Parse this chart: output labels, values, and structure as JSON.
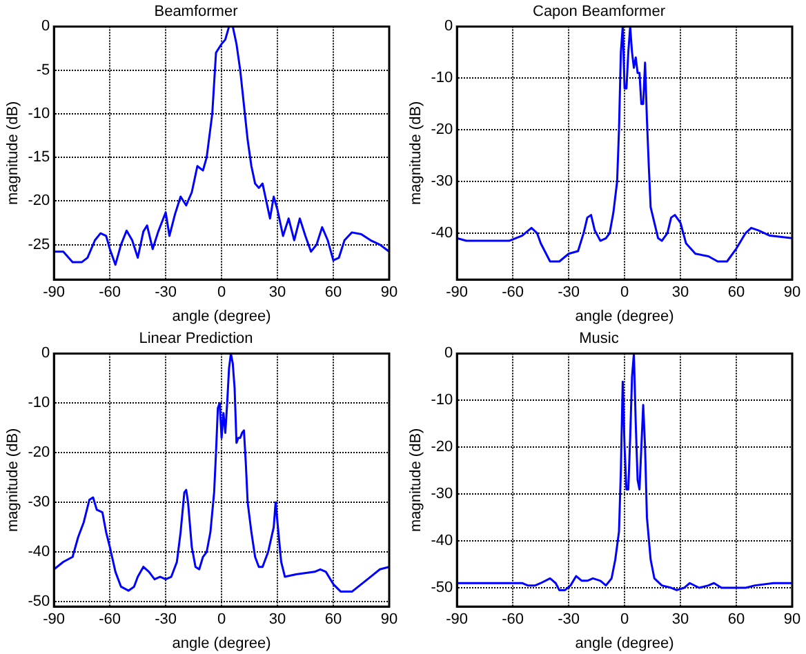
{
  "chart_data": [
    {
      "type": "line",
      "title": "Beamformer",
      "xlabel": "angle (degree)",
      "ylabel": "magnitude (dB)",
      "xlim": [
        -90,
        90
      ],
      "ylim": [
        -29,
        0
      ],
      "xticks": [
        -90,
        -60,
        -30,
        0,
        30,
        60,
        90
      ],
      "yticks": [
        -25,
        -20,
        -15,
        -10,
        -5,
        0
      ],
      "grid": true,
      "series": [
        {
          "color": "#0000ff",
          "x": [
            -90,
            -85,
            -80,
            -75,
            -72,
            -68,
            -65,
            -62,
            -60,
            -57,
            -54,
            -51,
            -48,
            -45,
            -42,
            -40,
            -37,
            -34,
            -30,
            -28,
            -25,
            -22,
            -19,
            -16,
            -13,
            -10,
            -8,
            -5,
            -3,
            0,
            2,
            4,
            6,
            8,
            10,
            12,
            14,
            16,
            18,
            20,
            22,
            24,
            26,
            28,
            30,
            33,
            36,
            39,
            42,
            45,
            48,
            51,
            54,
            57,
            60,
            63,
            66,
            70,
            75,
            80,
            85,
            90
          ],
          "values": [
            -25.8,
            -25.8,
            -27,
            -27,
            -26.5,
            -24.5,
            -23.7,
            -24,
            -25.5,
            -27.3,
            -25,
            -23.4,
            -24.5,
            -26.5,
            -23.5,
            -22.8,
            -25.5,
            -23.5,
            -21.3,
            -24,
            -21.5,
            -19.5,
            -20.5,
            -19,
            -16,
            -16.5,
            -15,
            -10,
            -3,
            -2,
            -1.5,
            0,
            0,
            -2,
            -5,
            -9,
            -13,
            -16,
            -18,
            -18.5,
            -18,
            -20,
            -22,
            -19.5,
            -21,
            -24,
            -22,
            -24.5,
            -22,
            -24,
            -25.8,
            -25,
            -23,
            -24.5,
            -26.8,
            -26.5,
            -24.5,
            -23.6,
            -23.8,
            -24.5,
            -25,
            -25.8
          ]
        }
      ]
    },
    {
      "type": "line",
      "title": "Capon Beamformer",
      "xlabel": "angle (degree)",
      "ylabel": "magnitude (dB)",
      "xlim": [
        -90,
        90
      ],
      "ylim": [
        -49,
        0
      ],
      "xticks": [
        -90,
        -60,
        -30,
        0,
        30,
        60,
        90
      ],
      "yticks": [
        -40,
        -30,
        -20,
        -10,
        0
      ],
      "grid": true,
      "series": [
        {
          "color": "#0000ff",
          "x": [
            -90,
            -85,
            -70,
            -62,
            -55,
            -50,
            -47,
            -45,
            -40,
            -35,
            -30,
            -25,
            -22,
            -20,
            -18,
            -16,
            -13,
            -10,
            -8,
            -6,
            -4,
            -3,
            -2,
            -1,
            0,
            1,
            2,
            3,
            4,
            5,
            6,
            7,
            8,
            9,
            10,
            11,
            12,
            13,
            14,
            16,
            18,
            20,
            23,
            25,
            27,
            30,
            33,
            38,
            45,
            50,
            55,
            60,
            65,
            68,
            72,
            78,
            90
          ],
          "values": [
            -41,
            -41.5,
            -41.5,
            -41.5,
            -40.5,
            -39,
            -40,
            -42,
            -45.5,
            -45.5,
            -44,
            -43.5,
            -40,
            -37,
            -36.5,
            -39.5,
            -41.5,
            -41,
            -40,
            -36,
            -30,
            -20,
            -5,
            0,
            -12,
            -12,
            -5,
            0,
            -5,
            -8,
            -6,
            -9,
            -9,
            -15,
            -15,
            -7,
            -18,
            -27,
            -35,
            -38,
            -41,
            -41.5,
            -40,
            -37,
            -36.5,
            -38,
            -42,
            -44,
            -44.5,
            -45.5,
            -45.5,
            -43,
            -40,
            -39,
            -39.5,
            -40.5,
            -41
          ]
        }
      ]
    },
    {
      "type": "line",
      "title": "Linear Prediction",
      "xlabel": "angle (degree)",
      "ylabel": "magnitude (dB)",
      "xlim": [
        -90,
        90
      ],
      "ylim": [
        -51,
        0
      ],
      "xticks": [
        -90,
        -60,
        -30,
        0,
        30,
        60,
        90
      ],
      "yticks": [
        -50,
        -40,
        -30,
        -20,
        -10,
        0
      ],
      "grid": true,
      "series": [
        {
          "color": "#0000ff",
          "x": [
            -90,
            -85,
            -80,
            -77,
            -74,
            -71,
            -69,
            -67,
            -64,
            -62,
            -60,
            -57,
            -54,
            -50,
            -47,
            -45,
            -42,
            -39,
            -36,
            -33,
            -30,
            -27,
            -24,
            -22,
            -20,
            -19,
            -18,
            -16,
            -14,
            -12,
            -10,
            -8,
            -6,
            -4,
            -3,
            -2,
            -1,
            0,
            1,
            2,
            3,
            4,
            5,
            6,
            7,
            8,
            9,
            10,
            11,
            12,
            13,
            14,
            16,
            18,
            20,
            22,
            25,
            28,
            29,
            30,
            31,
            32,
            34,
            40,
            50,
            53,
            56,
            60,
            64,
            70,
            75,
            80,
            85,
            90
          ],
          "values": [
            -43.5,
            -42,
            -41,
            -37,
            -34,
            -29.5,
            -29,
            -31.5,
            -32,
            -36,
            -39,
            -44,
            -47,
            -47.8,
            -47,
            -45,
            -43,
            -44,
            -45.5,
            -45,
            -45.5,
            -45,
            -42,
            -36,
            -28,
            -27.5,
            -30,
            -39,
            -43,
            -43.5,
            -41,
            -40,
            -36,
            -28,
            -20,
            -11,
            -10,
            -17,
            -12,
            -16,
            -10,
            -3,
            0,
            -2,
            -7,
            -18,
            -17,
            -17,
            -16,
            -15.5,
            -22,
            -30,
            -36,
            -41,
            -43,
            -43,
            -40,
            -35,
            -30,
            -34,
            -38,
            -42,
            -45,
            -44.5,
            -44,
            -43.5,
            -44,
            -46.5,
            -48,
            -48,
            -46.5,
            -45,
            -43.5,
            -43
          ]
        }
      ]
    },
    {
      "type": "line",
      "title": "Music",
      "xlabel": "angle (degree)",
      "ylabel": "magnitude (dB)",
      "xlim": [
        -90,
        90
      ],
      "ylim": [
        -54,
        0
      ],
      "xticks": [
        -90,
        -60,
        -30,
        0,
        30,
        60,
        90
      ],
      "yticks": [
        -50,
        -40,
        -30,
        -20,
        -10,
        0
      ],
      "grid": true,
      "series": [
        {
          "color": "#0000ff",
          "x": [
            -90,
            -55,
            -52,
            -48,
            -45,
            -40,
            -37,
            -35,
            -32,
            -29,
            -26,
            -23,
            -20,
            -17,
            -13,
            -10,
            -7,
            -5,
            -3,
            -2,
            -1,
            0,
            1,
            2,
            3,
            4,
            5,
            6,
            7,
            8,
            9,
            10,
            11,
            12,
            14,
            16,
            20,
            25,
            28,
            32,
            35,
            40,
            45,
            48,
            52,
            60,
            65,
            70,
            80,
            90
          ],
          "values": [
            -49,
            -49,
            -49.5,
            -49.5,
            -49,
            -48,
            -49,
            -50.5,
            -50.5,
            -49.5,
            -47.5,
            -48.5,
            -48.5,
            -48,
            -48.5,
            -49.5,
            -48,
            -44,
            -38,
            -25,
            -6,
            -20,
            -29,
            -29,
            -18,
            -5,
            0,
            -15,
            -27,
            -29,
            -20,
            -11,
            -20,
            -35,
            -44,
            -48,
            -49.5,
            -50,
            -50.5,
            -50,
            -49,
            -50,
            -49.5,
            -49,
            -50,
            -50,
            -50,
            -49.5,
            -49,
            -49
          ]
        }
      ]
    }
  ]
}
